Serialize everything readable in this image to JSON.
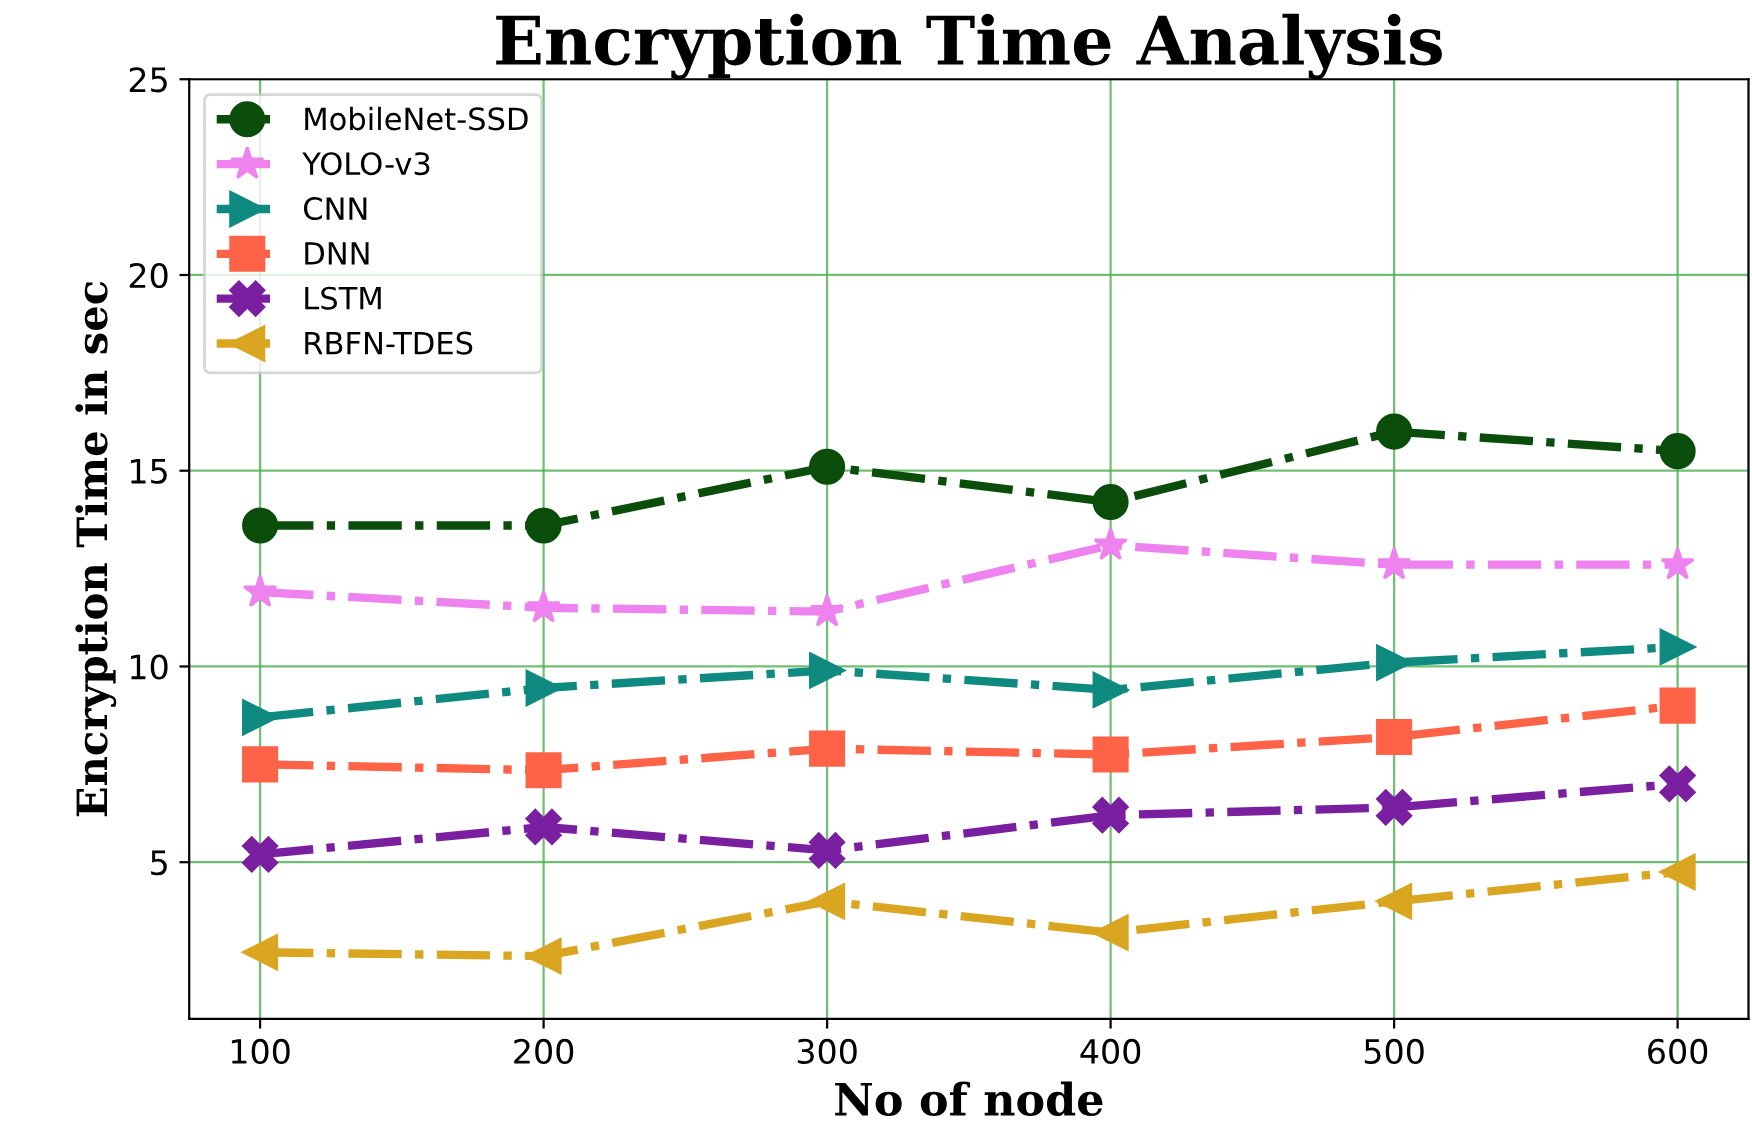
{
  "chart_data": {
    "type": "line",
    "title": "Encryption Time Analysis",
    "xlabel": "No of node",
    "ylabel": "Encryption Time in sec",
    "x": [
      100,
      200,
      300,
      400,
      500,
      600
    ],
    "xlim": [
      75,
      625
    ],
    "xticks": [
      100,
      200,
      300,
      400,
      500,
      600
    ],
    "ylim": [
      1,
      25
    ],
    "yticks": [
      5,
      10,
      15,
      20,
      25
    ],
    "grid": true,
    "legend": "top left",
    "line_style": "dashdot",
    "series": [
      {
        "name": "MobileNet-SSD",
        "color": "#0b4d0b",
        "marker": "circle",
        "values": [
          13.6,
          13.6,
          15.1,
          14.2,
          16.0,
          15.5
        ]
      },
      {
        "name": "YOLO-v3",
        "color": "#ee82ee",
        "marker": "star",
        "values": [
          11.9,
          11.5,
          11.4,
          13.1,
          12.6,
          12.6
        ]
      },
      {
        "name": "CNN",
        "color": "#0f8a80",
        "marker": "triangle-right",
        "values": [
          8.7,
          9.45,
          9.9,
          9.4,
          10.1,
          10.5
        ]
      },
      {
        "name": "DNN",
        "color": "#ff6347",
        "marker": "square",
        "values": [
          7.5,
          7.35,
          7.9,
          7.75,
          8.2,
          9.0
        ]
      },
      {
        "name": "LSTM",
        "color": "#7a1fa0",
        "marker": "cross",
        "values": [
          5.2,
          5.9,
          5.3,
          6.2,
          6.4,
          7.0
        ]
      },
      {
        "name": "RBFN-TDES",
        "color": "#daa520",
        "marker": "triangle-left",
        "values": [
          2.7,
          2.6,
          4.0,
          3.2,
          4.0,
          4.75
        ]
      }
    ]
  }
}
